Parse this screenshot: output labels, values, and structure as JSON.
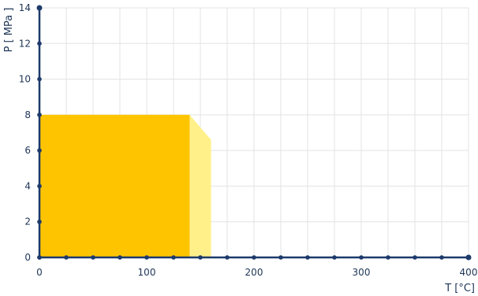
{
  "chart_data": {
    "type": "area",
    "xlabel": "T [°C]",
    "ylabel": "P [ MPa ]",
    "xlim": [
      0,
      400
    ],
    "ylim": [
      0,
      14
    ],
    "x_ticks": [
      0,
      100,
      200,
      300,
      400
    ],
    "y_ticks": [
      0,
      2,
      4,
      6,
      8,
      10,
      12,
      14
    ],
    "x_marker_step": 25,
    "grid": true,
    "grid_color": "#e3e3e3",
    "axis_color": "#1d3a6b",
    "series": [
      {
        "color": "#fff08a",
        "points": [
          [
            0,
            0
          ],
          [
            0,
            8
          ],
          [
            140,
            8
          ],
          [
            160,
            6.6
          ],
          [
            160,
            0
          ]
        ]
      },
      {
        "color": "#ffc400",
        "points": [
          [
            0,
            0
          ],
          [
            0,
            8
          ],
          [
            140,
            8
          ],
          [
            140,
            0
          ]
        ]
      }
    ]
  }
}
